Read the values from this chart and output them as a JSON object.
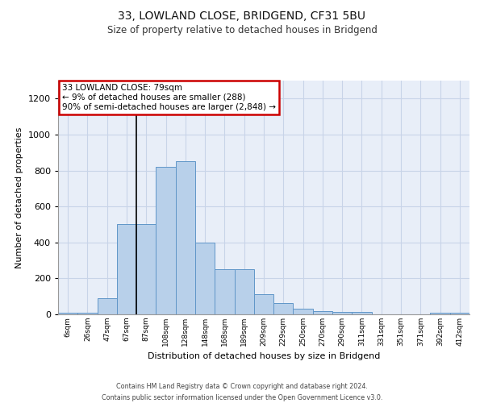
{
  "title_line1": "33, LOWLAND CLOSE, BRIDGEND, CF31 5BU",
  "title_line2": "Size of property relative to detached houses in Bridgend",
  "xlabel": "Distribution of detached houses by size in Bridgend",
  "ylabel": "Number of detached properties",
  "footnote": "Contains HM Land Registry data © Crown copyright and database right 2024.\nContains public sector information licensed under the Open Government Licence v3.0.",
  "bin_labels": [
    "6sqm",
    "26sqm",
    "47sqm",
    "67sqm",
    "87sqm",
    "108sqm",
    "128sqm",
    "148sqm",
    "168sqm",
    "189sqm",
    "209sqm",
    "229sqm",
    "250sqm",
    "270sqm",
    "290sqm",
    "311sqm",
    "331sqm",
    "351sqm",
    "371sqm",
    "392sqm",
    "412sqm"
  ],
  "bar_heights": [
    10,
    10,
    90,
    500,
    500,
    820,
    850,
    400,
    250,
    250,
    110,
    65,
    30,
    20,
    15,
    15,
    0,
    0,
    0,
    10,
    10
  ],
  "bar_color": "#b8d0ea",
  "bar_edge_color": "#6096c8",
  "annotation_text": "33 LOWLAND CLOSE: 79sqm\n← 9% of detached houses are smaller (288)\n90% of semi-detached houses are larger (2,848) →",
  "annotation_box_color": "#ffffff",
  "annotation_box_edge_color": "#cc0000",
  "ylim": [
    0,
    1300
  ],
  "yticks": [
    0,
    200,
    400,
    600,
    800,
    1000,
    1200
  ],
  "grid_color": "#c8d4e8",
  "bg_color": "#e8eef8",
  "bar_width": 1.0,
  "marker_bar_index": 4,
  "fig_width": 6.0,
  "fig_height": 5.0
}
